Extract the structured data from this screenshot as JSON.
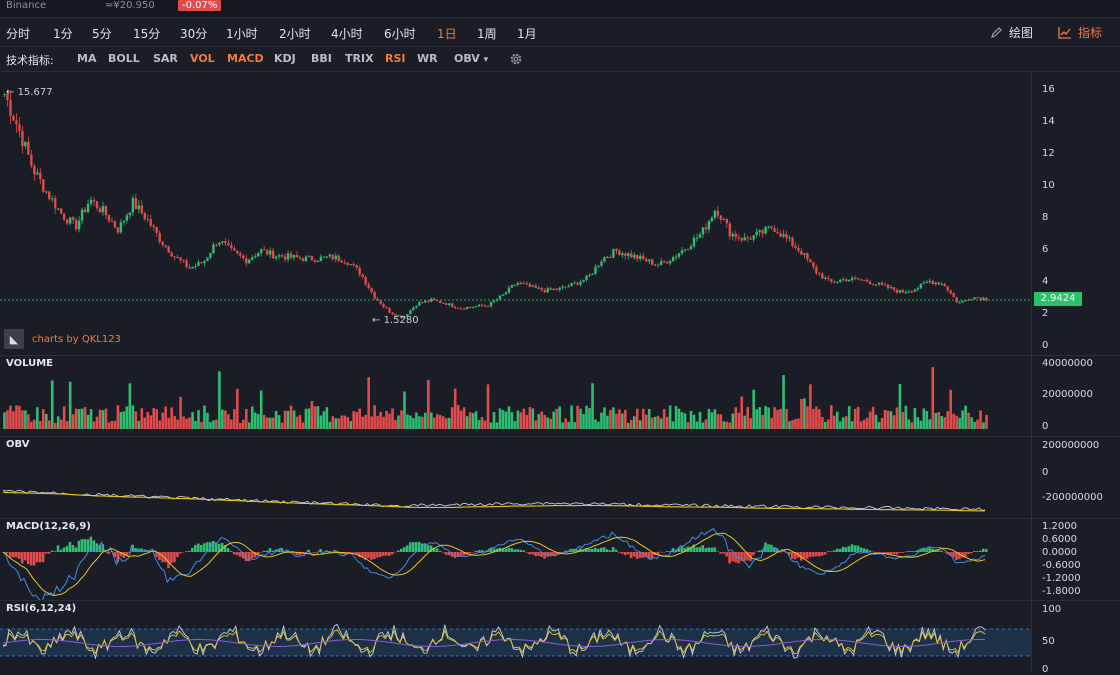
{
  "header": {
    "exchange": "Binance",
    "price": "≈¥20.950",
    "change": "-0.07%"
  },
  "timeframes": [
    "分时",
    "1分",
    "5分",
    "15分",
    "30分",
    "1小时",
    "2小时",
    "4小时",
    "6小时",
    "1日",
    "1周",
    "1月"
  ],
  "active_timeframe": "1日",
  "tools": {
    "draw_label": "绘图",
    "indicator_label": "指标"
  },
  "indicator_bar": {
    "label": "技术指标:",
    "items": [
      "MA",
      "BOLL",
      "SAR",
      "VOL",
      "MACD",
      "KDJ",
      "BBI",
      "TRIX",
      "RSI",
      "WR",
      "OBV"
    ],
    "active": [
      "VOL",
      "MACD",
      "RSI"
    ],
    "dropdown_arrow": "▾"
  },
  "main_chart": {
    "high_label": "15.677",
    "low_label": "1.5280",
    "last_price": "2.9424",
    "watermark": "charts by QKL123",
    "y_ticks": [
      "16",
      "14",
      "12",
      "10",
      "8",
      "6",
      "4",
      "2",
      "0"
    ]
  },
  "volume_pane": {
    "label": "VOLUME",
    "y_ticks": [
      "40000000",
      "20000000",
      "0"
    ]
  },
  "obv_pane": {
    "label": "OBV",
    "y_ticks": [
      "200000000",
      "0",
      "-200000000"
    ]
  },
  "macd_pane": {
    "label": "MACD(12,26,9)",
    "y_ticks": [
      "1.2000",
      "0.6000",
      "0.0000",
      "-0.6000",
      "-1.2000",
      "-1.8000"
    ]
  },
  "rsi_pane": {
    "label": "RSI(6,12,24)",
    "y_ticks": [
      "100",
      "50",
      "0"
    ]
  },
  "colors": {
    "up": "#2ebd71",
    "down": "#e14b4b",
    "accent": "#f07a3a",
    "yellow": "#e6c229",
    "blue": "#3e8ee0",
    "grey_line": "#c8ccd6"
  },
  "chart_data": {
    "type": "line",
    "title": "",
    "xlabel": "",
    "ylabel": "",
    "ylim": [
      0,
      16
    ],
    "series": [
      {
        "values": [
          15.7,
          13.5,
          11.0,
          9.5,
          8.2,
          7.4,
          9.1,
          8.3,
          7.2,
          8.9,
          7.9,
          6.5,
          5.5,
          4.8,
          5.2,
          6.6,
          5.8,
          5.3,
          5.9,
          5.6,
          5.5,
          5.4,
          5.4,
          5.5,
          5.3,
          4.5,
          3.0,
          2.1,
          1.7,
          2.6,
          2.8,
          2.6,
          2.3,
          2.4,
          2.5,
          3.1,
          3.9,
          3.6,
          3.4,
          3.5,
          3.8,
          4.2,
          5.4,
          5.9,
          5.6,
          5.3,
          5.0,
          5.5,
          6.2,
          7.0,
          8.6,
          7.0,
          6.6,
          6.9,
          7.4,
          6.6,
          5.8,
          4.6,
          3.9,
          4.1,
          4.1,
          3.9,
          3.6,
          3.3,
          3.5,
          4.0,
          3.8,
          2.6,
          3.0,
          2.9
        ]
      }
    ]
  }
}
